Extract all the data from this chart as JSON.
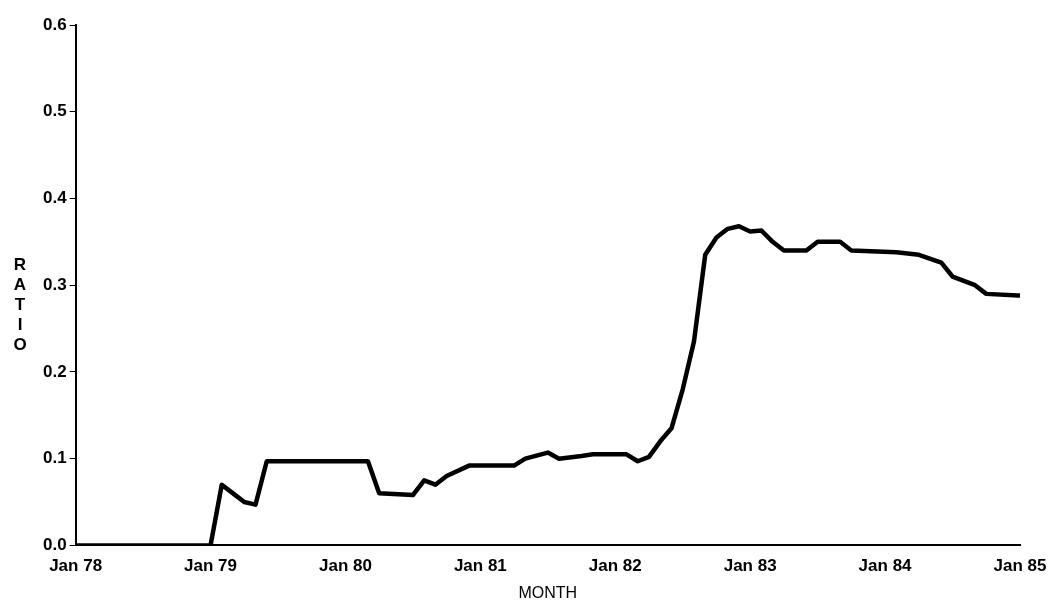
{
  "chart_data": {
    "type": "line",
    "xlabel": "MONTH",
    "ylabel": "RATIO",
    "x": [
      "1978-01",
      "1979-01",
      "1979-02",
      "1979-03",
      "1979-04",
      "1979-05",
      "1979-06",
      "1980-03",
      "1980-04",
      "1980-07",
      "1980-08",
      "1980-09",
      "1980-10",
      "1980-12",
      "1981-04",
      "1981-05",
      "1981-07",
      "1981-08",
      "1981-10",
      "1981-11",
      "1982-02",
      "1982-03",
      "1982-04",
      "1982-05",
      "1982-06",
      "1982-07",
      "1982-08",
      "1982-09",
      "1982-10",
      "1982-11",
      "1982-12",
      "1983-01",
      "1983-02",
      "1983-03",
      "1983-04",
      "1983-06",
      "1983-07",
      "1983-09",
      "1983-10",
      "1984-02",
      "1984-04",
      "1984-06",
      "1984-07",
      "1984-09",
      "1984-10",
      "1985-01"
    ],
    "series": [
      {
        "color": "#000000",
        "values": [
          0,
          0,
          0.07,
          0.06,
          0.05,
          0.047,
          0.097,
          0.097,
          0.06,
          0.058,
          0.075,
          0.07,
          0.08,
          0.092,
          0.092,
          0.1,
          0.107,
          0.1,
          0.103,
          0.105,
          0.105,
          0.097,
          0.102,
          0.12,
          0.135,
          0.18,
          0.235,
          0.335,
          0.355,
          0.365,
          0.368,
          0.362,
          0.363,
          0.35,
          0.34,
          0.34,
          0.35,
          0.35,
          0.34,
          0.338,
          0.335,
          0.326,
          0.31,
          0.3,
          0.29,
          0.288
        ]
      }
    ],
    "xlim": [
      "1978-01",
      "1985-01"
    ],
    "xticks": [
      {
        "value": "1978-01",
        "label": "Jan 78"
      },
      {
        "value": "1979-01",
        "label": "Jan 79"
      },
      {
        "value": "1980-01",
        "label": "Jan 80"
      },
      {
        "value": "1981-01",
        "label": "Jan 81"
      },
      {
        "value": "1982-01",
        "label": "Jan 82"
      },
      {
        "value": "1983-01",
        "label": "Jan 83"
      },
      {
        "value": "1984-01",
        "label": "Jan 84"
      },
      {
        "value": "1985-01",
        "label": "Jan 85"
      }
    ],
    "ylim": [
      0,
      0.6
    ],
    "yticks": [
      {
        "value": 0,
        "label": "0.0"
      },
      {
        "value": 0.1,
        "label": "0.1"
      },
      {
        "value": 0.2,
        "label": "0.2"
      },
      {
        "value": 0.3,
        "label": "0.3"
      },
      {
        "value": 0.4,
        "label": "0.4"
      },
      {
        "value": 0.5,
        "label": "0.5"
      },
      {
        "value": 0.6,
        "label": "0.6"
      }
    ],
    "grid": false,
    "legend": false
  }
}
